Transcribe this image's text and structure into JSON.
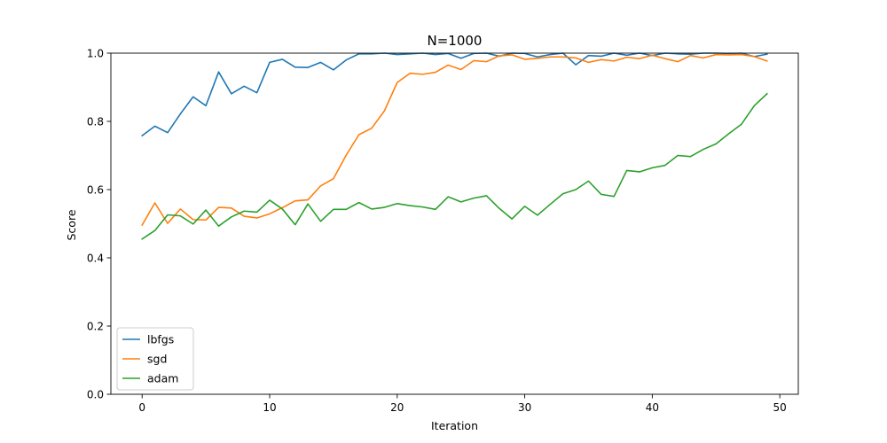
{
  "chart_data": {
    "type": "line",
    "title": "N=1000",
    "xlabel": "Iteration",
    "ylabel": "Score",
    "xlim": [
      -2.45,
      51.45
    ],
    "ylim": [
      0.0,
      1.0
    ],
    "xticks": [
      0,
      10,
      20,
      30,
      40,
      50
    ],
    "yticks": [
      0.0,
      0.2,
      0.4,
      0.6,
      0.8,
      1.0
    ],
    "ytick_labels": [
      "0.0",
      "0.2",
      "0.4",
      "0.6",
      "0.8",
      "1.0"
    ],
    "grid": false,
    "legend_position": "lower-left",
    "x": [
      0,
      1,
      2,
      3,
      4,
      5,
      6,
      7,
      8,
      9,
      10,
      11,
      12,
      13,
      14,
      15,
      16,
      17,
      18,
      19,
      20,
      21,
      22,
      23,
      24,
      25,
      26,
      27,
      28,
      29,
      30,
      31,
      32,
      33,
      34,
      35,
      36,
      37,
      38,
      39,
      40,
      41,
      42,
      43,
      44,
      45,
      46,
      47,
      48,
      49
    ],
    "series": [
      {
        "name": "lbfgs",
        "color": "#1f77b4",
        "values": [
          0.758,
          0.786,
          0.767,
          0.822,
          0.872,
          0.846,
          0.945,
          0.881,
          0.903,
          0.884,
          0.973,
          0.982,
          0.959,
          0.958,
          0.973,
          0.951,
          0.98,
          0.998,
          0.998,
          1.0,
          0.996,
          0.998,
          1.0,
          0.996,
          0.999,
          0.985,
          0.999,
          1.0,
          0.991,
          1.0,
          0.999,
          0.989,
          0.996,
          1.0,
          0.966,
          0.993,
          0.991,
          1.0,
          0.994,
          1.0,
          0.993,
          1.0,
          0.998,
          0.997,
          1.0,
          1.0,
          0.999,
          1.0,
          0.99,
          0.997
        ]
      },
      {
        "name": "sgd",
        "color": "#ff7f0e",
        "values": [
          0.496,
          0.561,
          0.501,
          0.543,
          0.512,
          0.511,
          0.548,
          0.546,
          0.522,
          0.517,
          0.529,
          0.547,
          0.567,
          0.57,
          0.611,
          0.632,
          0.701,
          0.761,
          0.78,
          0.831,
          0.914,
          0.941,
          0.938,
          0.944,
          0.965,
          0.952,
          0.978,
          0.975,
          0.992,
          0.995,
          0.982,
          0.985,
          0.989,
          0.989,
          0.986,
          0.973,
          0.981,
          0.977,
          0.988,
          0.984,
          0.994,
          0.984,
          0.975,
          0.993,
          0.986,
          0.996,
          0.995,
          0.996,
          0.99,
          0.977
        ]
      },
      {
        "name": "adam",
        "color": "#2ca02c",
        "values": [
          0.455,
          0.48,
          0.526,
          0.523,
          0.499,
          0.54,
          0.493,
          0.52,
          0.537,
          0.534,
          0.569,
          0.543,
          0.497,
          0.558,
          0.507,
          0.542,
          0.542,
          0.562,
          0.543,
          0.548,
          0.559,
          0.553,
          0.549,
          0.542,
          0.579,
          0.564,
          0.575,
          0.582,
          0.545,
          0.514,
          0.551,
          0.525,
          0.557,
          0.588,
          0.6,
          0.625,
          0.586,
          0.58,
          0.656,
          0.652,
          0.664,
          0.671,
          0.7,
          0.697,
          0.718,
          0.734,
          0.764,
          0.792,
          0.846,
          0.881
        ]
      }
    ]
  }
}
